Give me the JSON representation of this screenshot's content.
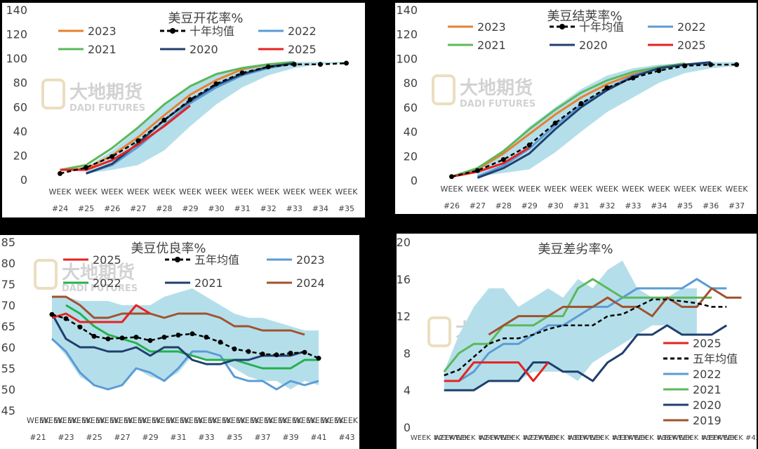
{
  "watermark": {
    "cn": "大地期货",
    "en": "DADI FUTURES"
  },
  "colors": {
    "band": "#b4dfea",
    "c2023": "#e9802e",
    "avg": "#000000",
    "c2022": "#5b9bd5",
    "c2021": "#5cb85c",
    "c2020": "#1f3f6e",
    "c2025": "#e8211f",
    "c2024": "#a0522d",
    "c2019": "#a0522d",
    "c2021g": "#22b14c"
  },
  "chart_data": [
    {
      "type": "line",
      "title": "美豆开花率%",
      "ylim": [
        0,
        140
      ],
      "yticks": [
        0,
        20,
        40,
        60,
        80,
        100,
        120,
        140
      ],
      "categories": [
        "WEEK #24",
        "WEEK #25",
        "WEEK #26",
        "WEEK #27",
        "WEEK #28",
        "WEEK #29",
        "WEEK #30",
        "WEEK #31",
        "WEEK #32",
        "WEEK #33",
        "WEEK #34",
        "WEEK #35"
      ],
      "legend": [
        "2023",
        "十年均值",
        "2022",
        "2021",
        "2020",
        "2025"
      ],
      "band": {
        "lower": [
          null,
          5,
          8,
          12,
          24,
          44,
          62,
          76,
          86,
          92,
          95,
          96
        ],
        "upper": [
          null,
          10,
          24,
          42,
          62,
          78,
          88,
          93,
          96,
          97,
          97,
          97
        ]
      },
      "series": [
        {
          "name": "2023",
          "color": "#e9802e",
          "dash": false,
          "marker": false,
          "values": [
            8,
            9,
            20,
            35,
            53,
            70,
            82,
            91,
            95,
            97,
            null,
            null
          ]
        },
        {
          "name": "2021",
          "color": "#5cb85c",
          "dash": false,
          "marker": false,
          "values": [
            8,
            12,
            26,
            43,
            62,
            77,
            87,
            92,
            95,
            97,
            null,
            null
          ]
        },
        {
          "name": "2022",
          "color": "#5b9bd5",
          "dash": false,
          "marker": false,
          "values": [
            null,
            5,
            12,
            27,
            45,
            63,
            76,
            86,
            92,
            96,
            null,
            null
          ]
        },
        {
          "name": "2020",
          "color": "#1f3f6e",
          "dash": false,
          "marker": false,
          "values": [
            null,
            5,
            13,
            30,
            49,
            65,
            78,
            87,
            93,
            96,
            null,
            null
          ]
        },
        {
          "name": "2025",
          "color": "#e8211f",
          "dash": false,
          "marker": false,
          "values": [
            8,
            8,
            16,
            29,
            44,
            61,
            null,
            null,
            null,
            null,
            null,
            null
          ]
        },
        {
          "name": "十年均值",
          "color": "#000000",
          "dash": true,
          "marker": true,
          "values": [
            5,
            10,
            19,
            32,
            49,
            66,
            79,
            88,
            93,
            95,
            95,
            96
          ]
        }
      ]
    },
    {
      "type": "line",
      "title": "美豆结荚率%",
      "ylim": [
        0,
        140
      ],
      "yticks": [
        0,
        20,
        40,
        60,
        80,
        100,
        120,
        140
      ],
      "categories": [
        "WEEK #26",
        "WEEK #27",
        "WEEK #28",
        "WEEK #29",
        "WEEK #30",
        "WEEK #31",
        "WEEK #32",
        "WEEK #33",
        "WEEK #34",
        "WEEK #35",
        "WEEK #36",
        "WEEK #37"
      ],
      "legend": [
        "2023",
        "十年均值",
        "2022",
        "2021",
        "2020",
        "2025"
      ],
      "band": {
        "lower": [
          null,
          3,
          6,
          9,
          23,
          40,
          56,
          68,
          80,
          88,
          92,
          94
        ],
        "upper": [
          null,
          10,
          24,
          44,
          60,
          75,
          86,
          92,
          95,
          96,
          97,
          97
        ]
      },
      "series": [
        {
          "name": "2023",
          "color": "#e9802e",
          "dash": false,
          "marker": false,
          "values": [
            3,
            9,
            22,
            38,
            54,
            68,
            79,
            87,
            92,
            95,
            null,
            null
          ]
        },
        {
          "name": "2021",
          "color": "#5cb85c",
          "dash": false,
          "marker": false,
          "values": [
            3,
            10,
            24,
            42,
            58,
            72,
            82,
            89,
            93,
            96,
            null,
            null
          ]
        },
        {
          "name": "2022",
          "color": "#5b9bd5",
          "dash": false,
          "marker": false,
          "values": [
            null,
            3,
            12,
            26,
            45,
            62,
            75,
            86,
            92,
            95,
            96,
            null
          ]
        },
        {
          "name": "2020",
          "color": "#1f3f6e",
          "dash": false,
          "marker": false,
          "values": [
            null,
            2,
            10,
            22,
            42,
            60,
            74,
            85,
            92,
            95,
            97,
            null
          ]
        },
        {
          "name": "2025",
          "color": "#e8211f",
          "dash": false,
          "marker": false,
          "values": [
            3,
            7,
            14,
            27,
            null,
            null,
            null,
            null,
            null,
            null,
            null,
            null
          ]
        },
        {
          "name": "十年均值",
          "color": "#000000",
          "dash": true,
          "marker": true,
          "values": [
            3,
            8,
            17,
            29,
            47,
            63,
            76,
            84,
            90,
            94,
            95,
            95
          ]
        }
      ]
    },
    {
      "type": "line",
      "title": "美豆优良率%",
      "ylim": [
        45,
        85
      ],
      "yticks": [
        45,
        50,
        55,
        60,
        65,
        70,
        75,
        80,
        85
      ],
      "categories": [
        "WEEK #21",
        "WEEK #22",
        "WEEK #23",
        "WEEK #24",
        "WEEK #25",
        "WEEK #26",
        "WEEK #27",
        "WEEK #28",
        "WEEK #29",
        "WEEK #30",
        "WEEK #31",
        "WEEK #32",
        "WEEK #33",
        "WEEK #34",
        "WEEK #35",
        "WEEK #36",
        "WEEK #37",
        "WEEK #38",
        "WEEK #39",
        "WEEK #40",
        "WEEK #41",
        "WEEK #42",
        "WEEK #43"
      ],
      "tick_labels": [
        "WEEK #21",
        "WEEK",
        "WEEK #23",
        "WEEK",
        "WEEK #25",
        "WEEK",
        "WEEK #27",
        "WEEK",
        "WEEK #29",
        "WEEK",
        "WEEK #31",
        "WEEK",
        "WEEK #33",
        "WEEK",
        "WEEK #35",
        "WEEK",
        "WEEK #37",
        "WEEK",
        "WEEK #39",
        "WEEK",
        "WEEK #41",
        "WEEK",
        "WEEK #43"
      ],
      "legend": [
        "2025",
        "五年均值",
        "2023",
        "2022",
        "2021",
        "2024"
      ],
      "band": {
        "lower": [
          null,
          62,
          58,
          53,
          51,
          50,
          51,
          55,
          53,
          52,
          54,
          58,
          57,
          57,
          55,
          53,
          52,
          52,
          50,
          52,
          51,
          null,
          null
        ],
        "upper": [
          null,
          72,
          72,
          71,
          71,
          71,
          70,
          70,
          70,
          72,
          73,
          74,
          72,
          70,
          68,
          67,
          67,
          66,
          65,
          64,
          64,
          null,
          null
        ]
      },
      "series": [
        {
          "name": "2023",
          "color": "#5b9bd5",
          "dash": false,
          "marker": false,
          "values": [
            null,
            62,
            59,
            54,
            51,
            50,
            51,
            55,
            54,
            52,
            55,
            59,
            59,
            58,
            53,
            52,
            52,
            50,
            52,
            51,
            52,
            null,
            null
          ]
        },
        {
          "name": "2022",
          "color": "#22b14c",
          "dash": false,
          "marker": false,
          "values": [
            null,
            null,
            70,
            68,
            65,
            63,
            62,
            61,
            59,
            59,
            59,
            58,
            57,
            57,
            57,
            56,
            55,
            55,
            55,
            57,
            57,
            null,
            null
          ]
        },
        {
          "name": "2021",
          "color": "#1f3f6e",
          "dash": false,
          "marker": false,
          "values": [
            null,
            68,
            62,
            60,
            60,
            59,
            59,
            60,
            58,
            60,
            60,
            57,
            56,
            56,
            57,
            57,
            58,
            58,
            58,
            59,
            null,
            null,
            null
          ]
        },
        {
          "name": "2024",
          "color": "#a0522d",
          "dash": false,
          "marker": false,
          "values": [
            null,
            72,
            72,
            70,
            67,
            67,
            68,
            68,
            68,
            67,
            68,
            68,
            68,
            67,
            65,
            65,
            64,
            64,
            64,
            63,
            null,
            null,
            null
          ]
        },
        {
          "name": "2025",
          "color": "#e8211f",
          "dash": false,
          "marker": false,
          "values": [
            null,
            67,
            68,
            66,
            66,
            66,
            66,
            70,
            68,
            null,
            null,
            null,
            null,
            null,
            null,
            null,
            null,
            null,
            null,
            null,
            null,
            null,
            null
          ]
        },
        {
          "name": "五年均值",
          "color": "#000000",
          "dash": true,
          "marker": true,
          "values": [
            null,
            67.8,
            66.8,
            64.8,
            62.6,
            62.0,
            62.2,
            62.4,
            61.6,
            62.4,
            62.9,
            63.2,
            62.4,
            61.2,
            59.6,
            59.0,
            58.4,
            58.2,
            58.6,
            58.8,
            57.4,
            null,
            null
          ]
        }
      ]
    },
    {
      "type": "line",
      "title": "美豆差劣率%",
      "ylim": [
        0,
        20
      ],
      "yticks": [
        0,
        4,
        8,
        12,
        16,
        20
      ],
      "categories": [
        "WEEK #21",
        "WEEK #22",
        "WEEK #23",
        "WEEK #24",
        "WEEK #25",
        "WEEK #26",
        "WEEK #27",
        "WEEK #28",
        "WEEK #29",
        "WEEK #30",
        "WEEK #31",
        "WEEK #32",
        "WEEK #33",
        "WEEK #34",
        "WEEK #35",
        "WEEK #36",
        "WEEK #37",
        "WEEK #38",
        "WEEK #39",
        "WEEK #40",
        "WEEK #41",
        "WEEK #42"
      ],
      "tick_labels": [
        "WEEK #21",
        "WEEK",
        "WEEK #24",
        "WEEK",
        "WEEK #27",
        "WEEK",
        "WEEK #30",
        "WEEK",
        "WEEK #33",
        "WEEK",
        "WEEK #36",
        "WEEK",
        "WEEK #39",
        "WEEK #42"
      ],
      "tick_labels_4": [
        "WEEK #21",
        "WEEK",
        "WEEK",
        "WEEK #24",
        "WEEK",
        "WEEK",
        "WEEK #27",
        "WEEK",
        "WEEK",
        "WEEK #30",
        "WEEK",
        "WEEK",
        "WEEK #33",
        "WEEK",
        "WEEK",
        "WEEK #36",
        "WEEK",
        "WEEK",
        "WEEK #39",
        "WEEK",
        "WEEK",
        "WEEK #42"
      ],
      "legend": [
        "2025",
        "五年均值",
        "2022",
        "2021",
        "2020",
        "2019"
      ],
      "band": {
        "lower": [
          null,
          4,
          4,
          4,
          5,
          5,
          5,
          6,
          6,
          6,
          5,
          7,
          8,
          9,
          10,
          11,
          11,
          10,
          10,
          10,
          11,
          null
        ],
        "upper": [
          null,
          6,
          10,
          13,
          15,
          15,
          13,
          14,
          15,
          14,
          16,
          15,
          17,
          18,
          15,
          14,
          14,
          15,
          15,
          null,
          null,
          null
        ]
      },
      "series": [
        {
          "name": "2022",
          "color": "#5b9bd5",
          "dash": false,
          "marker": false,
          "values": [
            null,
            5,
            5,
            6,
            8,
            9,
            9,
            10,
            11,
            11,
            12,
            13,
            13,
            14,
            15,
            15,
            15,
            15,
            16,
            15,
            15,
            null
          ]
        },
        {
          "name": "2021",
          "color": "#5cb85c",
          "dash": false,
          "marker": false,
          "values": [
            null,
            6,
            8,
            9,
            9,
            11,
            11,
            11,
            12,
            12,
            15,
            16,
            15,
            14,
            14,
            14,
            14,
            14,
            14,
            14,
            null,
            null
          ]
        },
        {
          "name": "2020",
          "color": "#1f3f6e",
          "dash": false,
          "marker": false,
          "values": [
            null,
            4,
            4,
            4,
            5,
            5,
            5,
            7,
            7,
            6,
            6,
            5,
            7,
            8,
            10,
            10,
            11,
            10,
            10,
            10,
            11,
            null
          ]
        },
        {
          "name": "2019",
          "color": "#a0522d",
          "dash": false,
          "marker": false,
          "values": [
            null,
            null,
            null,
            null,
            10,
            11,
            12,
            12,
            12,
            13,
            13,
            13,
            14,
            13,
            13,
            12,
            14,
            13,
            13,
            15,
            14,
            14
          ]
        },
        {
          "name": "2025",
          "color": "#e8211f",
          "dash": false,
          "marker": false,
          "values": [
            null,
            5,
            5,
            7,
            7,
            7,
            7,
            5,
            7,
            null,
            null,
            null,
            null,
            null,
            null,
            null,
            null,
            null,
            null,
            null,
            null,
            null
          ]
        },
        {
          "name": "五年均值",
          "color": "#000000",
          "dash": true,
          "marker": false,
          "values": [
            null,
            5.6,
            6.2,
            7.6,
            9.0,
            9.6,
            9.6,
            10.0,
            10.6,
            11.0,
            11.0,
            11.0,
            12.0,
            12.2,
            13.0,
            13.8,
            13.8,
            13.6,
            13.4,
            13.0,
            13.0,
            null
          ]
        }
      ]
    }
  ]
}
